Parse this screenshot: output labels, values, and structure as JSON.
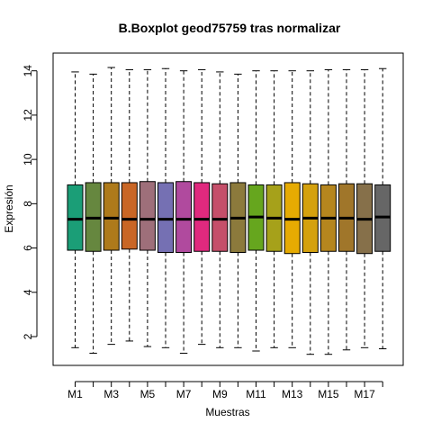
{
  "chart_data": {
    "type": "boxplot",
    "title": "B.Boxplot geod75759 tras normalizar",
    "xlabel": "Muestras",
    "ylabel": "Expresión",
    "ylim": [
      0.7,
      14.8
    ],
    "y_ticks": [
      2,
      4,
      6,
      8,
      10,
      12,
      14
    ],
    "x_tick_labels": [
      "M1",
      "M3",
      "M5",
      "M7",
      "M9",
      "M11",
      "M13",
      "M15",
      "M17"
    ],
    "grid": false,
    "legend": "none",
    "categories": [
      "M1",
      "M2",
      "M3",
      "M4",
      "M5",
      "M6",
      "M7",
      "M8",
      "M9",
      "M10",
      "M11",
      "M12",
      "M13",
      "M14",
      "M15",
      "M16",
      "M17",
      "M18"
    ],
    "boxes": [
      {
        "name": "M1",
        "color": "#1B9E77",
        "whisker_low": 1.5,
        "q1": 5.9,
        "median": 7.3,
        "q3": 8.85,
        "whisker_high": 13.95
      },
      {
        "name": "M2",
        "color": "#66873F",
        "whisker_low": 1.25,
        "q1": 5.85,
        "median": 7.35,
        "q3": 8.95,
        "whisker_high": 13.85
      },
      {
        "name": "M3",
        "color": "#AE7A1B",
        "whisker_low": 1.65,
        "q1": 5.9,
        "median": 7.35,
        "q3": 8.95,
        "whisker_high": 14.15
      },
      {
        "name": "M4",
        "color": "#C96625",
        "whisker_low": 1.8,
        "q1": 5.95,
        "median": 7.3,
        "q3": 8.95,
        "whisker_high": 14.05
      },
      {
        "name": "M5",
        "color": "#9E6F7A",
        "whisker_low": 1.55,
        "q1": 5.9,
        "median": 7.3,
        "q3": 9.0,
        "whisker_high": 14.05
      },
      {
        "name": "M6",
        "color": "#7570B3",
        "whisker_low": 1.5,
        "q1": 5.8,
        "median": 7.3,
        "q3": 8.95,
        "whisker_high": 14.1
      },
      {
        "name": "M7",
        "color": "#B04A9E",
        "whisker_low": 1.25,
        "q1": 5.8,
        "median": 7.3,
        "q3": 9.0,
        "whisker_high": 14.0
      },
      {
        "name": "M8",
        "color": "#E0297E",
        "whisker_low": 1.65,
        "q1": 5.85,
        "median": 7.3,
        "q3": 8.95,
        "whisker_high": 14.05
      },
      {
        "name": "M9",
        "color": "#C54F6A",
        "whisker_low": 1.5,
        "q1": 5.85,
        "median": 7.3,
        "q3": 8.9,
        "whisker_high": 13.95
      },
      {
        "name": "M10",
        "color": "#8C7A3C",
        "whisker_low": 1.5,
        "q1": 5.8,
        "median": 7.35,
        "q3": 8.95,
        "whisker_high": 13.85
      },
      {
        "name": "M11",
        "color": "#66A61E",
        "whisker_low": 1.35,
        "q1": 5.9,
        "median": 7.4,
        "q3": 8.85,
        "whisker_high": 14.0
      },
      {
        "name": "M12",
        "color": "#A6A11A",
        "whisker_low": 1.5,
        "q1": 5.85,
        "median": 7.35,
        "q3": 8.85,
        "whisker_high": 14.0
      },
      {
        "name": "M13",
        "color": "#E6AB02",
        "whisker_low": 1.5,
        "q1": 5.75,
        "median": 7.3,
        "q3": 8.95,
        "whisker_high": 14.0
      },
      {
        "name": "M14",
        "color": "#D4A10E",
        "whisker_low": 1.2,
        "q1": 5.8,
        "median": 7.35,
        "q3": 8.9,
        "whisker_high": 14.0
      },
      {
        "name": "M15",
        "color": "#B5861E",
        "whisker_low": 1.2,
        "q1": 5.85,
        "median": 7.35,
        "q3": 8.85,
        "whisker_high": 14.05
      },
      {
        "name": "M16",
        "color": "#A0762A",
        "whisker_low": 1.4,
        "q1": 5.85,
        "median": 7.35,
        "q3": 8.9,
        "whisker_high": 14.05
      },
      {
        "name": "M17",
        "color": "#86704A",
        "whisker_low": 1.5,
        "q1": 5.75,
        "median": 7.3,
        "q3": 8.9,
        "whisker_high": 14.05
      },
      {
        "name": "M18",
        "color": "#666666",
        "whisker_low": 1.45,
        "q1": 5.85,
        "median": 7.4,
        "q3": 8.85,
        "whisker_high": 14.1
      }
    ]
  }
}
